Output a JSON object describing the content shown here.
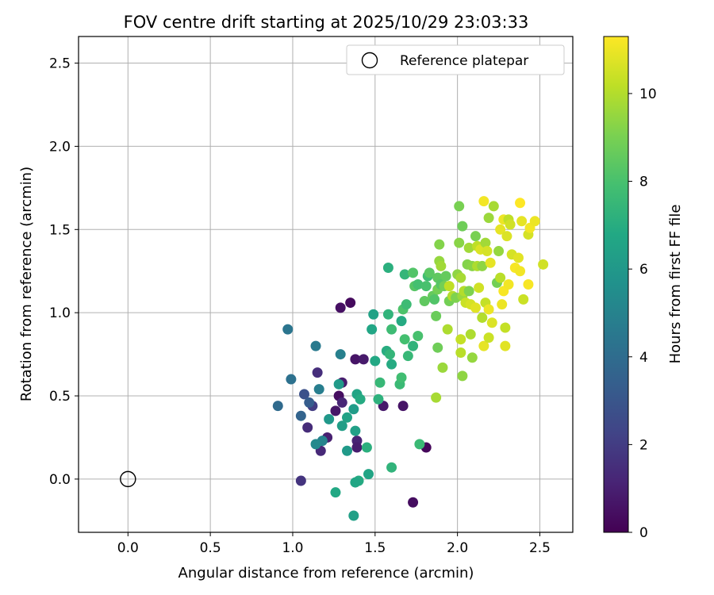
{
  "chart_data": {
    "type": "scatter",
    "title": "FOV centre drift starting at 2025/10/29 23:03:33",
    "xlabel": "Angular distance from reference (arcmin)",
    "ylabel": "Rotation from reference (arcmin)",
    "xlim": [
      -0.3,
      2.7
    ],
    "ylim": [
      -0.32,
      2.66
    ],
    "grid": true,
    "legend_position": "top-right",
    "xticks": [
      0.0,
      0.5,
      1.0,
      1.5,
      2.0,
      2.5
    ],
    "xtick_labels": [
      "0.0",
      "0.5",
      "1.0",
      "1.5",
      "2.0",
      "2.5"
    ],
    "yticks": [
      0.0,
      0.5,
      1.0,
      1.5,
      2.0,
      2.5
    ],
    "ytick_labels": [
      "0.0",
      "0.5",
      "1.0",
      "1.5",
      "2.0",
      "2.5"
    ],
    "reference": {
      "label": "Reference platepar",
      "x": 0.0,
      "y": 0.0,
      "marker": "open-circle"
    },
    "colorbar": {
      "label": "Hours from first FF file",
      "colormap": "viridis",
      "range": [
        0,
        11.3
      ],
      "ticks": [
        0,
        2,
        4,
        6,
        8,
        10
      ],
      "tick_labels": [
        "0",
        "2",
        "4",
        "6",
        "8",
        "10"
      ]
    },
    "series": [
      {
        "name": "FOV centre",
        "points": [
          {
            "x": 1.29,
            "y": 1.03,
            "c": 0.5
          },
          {
            "x": 1.35,
            "y": 1.06,
            "c": 0.3
          },
          {
            "x": 1.38,
            "y": 0.72,
            "c": 0.6
          },
          {
            "x": 1.43,
            "y": 0.72,
            "c": 0.8
          },
          {
            "x": 1.3,
            "y": 0.58,
            "c": 0.9
          },
          {
            "x": 1.28,
            "y": 0.5,
            "c": 0.4
          },
          {
            "x": 1.26,
            "y": 0.41,
            "c": 0.7
          },
          {
            "x": 1.3,
            "y": 0.46,
            "c": 1.2
          },
          {
            "x": 1.21,
            "y": 0.25,
            "c": 1.0
          },
          {
            "x": 1.17,
            "y": 0.17,
            "c": 1.3
          },
          {
            "x": 1.09,
            "y": 0.31,
            "c": 1.4
          },
          {
            "x": 1.15,
            "y": 0.64,
            "c": 1.5
          },
          {
            "x": 1.39,
            "y": 0.23,
            "c": 1.1
          },
          {
            "x": 1.39,
            "y": 0.19,
            "c": 0.9
          },
          {
            "x": 1.55,
            "y": 0.44,
            "c": 0.8
          },
          {
            "x": 1.67,
            "y": 0.44,
            "c": 0.6
          },
          {
            "x": 1.81,
            "y": 0.19,
            "c": 0.2
          },
          {
            "x": 1.73,
            "y": -0.14,
            "c": 0.4
          },
          {
            "x": 1.05,
            "y": -0.01,
            "c": 1.7
          },
          {
            "x": 1.12,
            "y": 0.44,
            "c": 2.0
          },
          {
            "x": 1.07,
            "y": 0.51,
            "c": 2.8
          },
          {
            "x": 1.1,
            "y": 0.46,
            "c": 3.3
          },
          {
            "x": 1.05,
            "y": 0.38,
            "c": 3.6
          },
          {
            "x": 0.91,
            "y": 0.44,
            "c": 3.9
          },
          {
            "x": 0.99,
            "y": 0.6,
            "c": 4.2
          },
          {
            "x": 0.97,
            "y": 0.9,
            "c": 4.4
          },
          {
            "x": 1.14,
            "y": 0.8,
            "c": 4.6
          },
          {
            "x": 1.16,
            "y": 0.54,
            "c": 4.8
          },
          {
            "x": 1.18,
            "y": 0.23,
            "c": 5.0
          },
          {
            "x": 1.14,
            "y": 0.21,
            "c": 5.3
          },
          {
            "x": 1.29,
            "y": 0.75,
            "c": 4.9
          },
          {
            "x": 1.22,
            "y": 0.36,
            "c": 6.0
          },
          {
            "x": 1.3,
            "y": 0.32,
            "c": 6.3
          },
          {
            "x": 1.33,
            "y": 0.37,
            "c": 6.5
          },
          {
            "x": 1.28,
            "y": 0.57,
            "c": 6.1
          },
          {
            "x": 1.37,
            "y": 0.42,
            "c": 6.2
          },
          {
            "x": 1.38,
            "y": 0.29,
            "c": 6.4
          },
          {
            "x": 1.39,
            "y": 0.51,
            "c": 6.6
          },
          {
            "x": 1.33,
            "y": 0.17,
            "c": 6.1
          },
          {
            "x": 1.4,
            "y": -0.01,
            "c": 6.9
          },
          {
            "x": 1.38,
            "y": -0.02,
            "c": 6.7
          },
          {
            "x": 1.37,
            "y": -0.22,
            "c": 6.4
          },
          {
            "x": 1.26,
            "y": -0.08,
            "c": 6.8
          },
          {
            "x": 1.45,
            "y": 0.19,
            "c": 7.1
          },
          {
            "x": 1.46,
            "y": 0.03,
            "c": 6.6
          },
          {
            "x": 1.6,
            "y": 0.07,
            "c": 7.3
          },
          {
            "x": 1.77,
            "y": 0.21,
            "c": 7.6
          },
          {
            "x": 1.41,
            "y": 0.48,
            "c": 6.9
          },
          {
            "x": 1.48,
            "y": 0.9,
            "c": 6.7
          },
          {
            "x": 1.49,
            "y": 0.99,
            "c": 6.5
          },
          {
            "x": 1.5,
            "y": 0.71,
            "c": 6.8
          },
          {
            "x": 1.52,
            "y": 0.48,
            "c": 7.2
          },
          {
            "x": 1.53,
            "y": 0.58,
            "c": 7.5
          },
          {
            "x": 1.57,
            "y": 0.77,
            "c": 7.0
          },
          {
            "x": 1.59,
            "y": 0.75,
            "c": 7.4
          },
          {
            "x": 1.6,
            "y": 0.69,
            "c": 6.9
          },
          {
            "x": 1.58,
            "y": 0.99,
            "c": 7.3
          },
          {
            "x": 1.6,
            "y": 0.9,
            "c": 7.7
          },
          {
            "x": 1.58,
            "y": 1.27,
            "c": 7.1
          },
          {
            "x": 1.65,
            "y": 0.57,
            "c": 7.6
          },
          {
            "x": 1.66,
            "y": 0.61,
            "c": 7.8
          },
          {
            "x": 1.66,
            "y": 0.95,
            "c": 6.9
          },
          {
            "x": 1.68,
            "y": 0.84,
            "c": 7.9
          },
          {
            "x": 1.7,
            "y": 0.74,
            "c": 7.5
          },
          {
            "x": 1.73,
            "y": 0.8,
            "c": 7.3
          },
          {
            "x": 1.76,
            "y": 0.86,
            "c": 8.0
          },
          {
            "x": 1.67,
            "y": 1.02,
            "c": 8.1
          },
          {
            "x": 1.69,
            "y": 1.05,
            "c": 7.7
          },
          {
            "x": 1.68,
            "y": 1.23,
            "c": 7.4
          },
          {
            "x": 1.74,
            "y": 1.16,
            "c": 8.3
          },
          {
            "x": 1.76,
            "y": 1.17,
            "c": 7.9
          },
          {
            "x": 1.73,
            "y": 1.24,
            "c": 8.2
          },
          {
            "x": 1.8,
            "y": 1.07,
            "c": 8.5
          },
          {
            "x": 1.81,
            "y": 1.16,
            "c": 8.0
          },
          {
            "x": 1.82,
            "y": 1.22,
            "c": 7.8
          },
          {
            "x": 1.83,
            "y": 1.24,
            "c": 8.4
          },
          {
            "x": 1.85,
            "y": 1.1,
            "c": 8.6
          },
          {
            "x": 1.86,
            "y": 1.08,
            "c": 8.2
          },
          {
            "x": 1.87,
            "y": 0.98,
            "c": 8.7
          },
          {
            "x": 1.88,
            "y": 1.14,
            "c": 8.9
          },
          {
            "x": 1.88,
            "y": 0.79,
            "c": 8.8
          },
          {
            "x": 1.88,
            "y": 1.21,
            "c": 8.5
          },
          {
            "x": 1.89,
            "y": 1.41,
            "c": 9.2
          },
          {
            "x": 1.9,
            "y": 1.17,
            "c": 8.3
          },
          {
            "x": 1.91,
            "y": 0.67,
            "c": 9.6
          },
          {
            "x": 1.92,
            "y": 1.16,
            "c": 8.9
          },
          {
            "x": 1.93,
            "y": 1.22,
            "c": 8.6
          },
          {
            "x": 1.87,
            "y": 0.49,
            "c": 9.8
          },
          {
            "x": 1.89,
            "y": 1.31,
            "c": 9.5
          },
          {
            "x": 1.9,
            "y": 1.28,
            "c": 9.7
          },
          {
            "x": 1.94,
            "y": 0.9,
            "c": 9.9
          },
          {
            "x": 1.95,
            "y": 1.16,
            "c": 10.2
          },
          {
            "x": 1.95,
            "y": 1.07,
            "c": 8.9
          },
          {
            "x": 1.97,
            "y": 1.1,
            "c": 10.0
          },
          {
            "x": 1.99,
            "y": 1.09,
            "c": 9.1
          },
          {
            "x": 2.0,
            "y": 1.23,
            "c": 9.4
          },
          {
            "x": 2.01,
            "y": 1.64,
            "c": 9.0
          },
          {
            "x": 2.01,
            "y": 1.42,
            "c": 9.3
          },
          {
            "x": 2.02,
            "y": 1.21,
            "c": 9.8
          },
          {
            "x": 2.02,
            "y": 0.76,
            "c": 10.1
          },
          {
            "x": 2.02,
            "y": 0.84,
            "c": 10.3
          },
          {
            "x": 2.03,
            "y": 1.1,
            "c": 9.6
          },
          {
            "x": 2.03,
            "y": 1.52,
            "c": 8.8
          },
          {
            "x": 2.03,
            "y": 0.62,
            "c": 9.4
          },
          {
            "x": 2.04,
            "y": 1.13,
            "c": 10.0
          },
          {
            "x": 2.05,
            "y": 1.06,
            "c": 10.4
          },
          {
            "x": 2.06,
            "y": 1.29,
            "c": 9.2
          },
          {
            "x": 2.07,
            "y": 1.13,
            "c": 9.1
          },
          {
            "x": 2.07,
            "y": 1.39,
            "c": 9.7
          },
          {
            "x": 2.08,
            "y": 1.05,
            "c": 10.6
          },
          {
            "x": 2.08,
            "y": 0.87,
            "c": 9.9
          },
          {
            "x": 2.09,
            "y": 0.73,
            "c": 9.5
          },
          {
            "x": 2.09,
            "y": 1.28,
            "c": 9.3
          },
          {
            "x": 2.11,
            "y": 1.46,
            "c": 9.0
          },
          {
            "x": 2.11,
            "y": 1.03,
            "c": 10.8
          },
          {
            "x": 2.12,
            "y": 1.28,
            "c": 9.9
          },
          {
            "x": 2.12,
            "y": 1.4,
            "c": 10.2
          },
          {
            "x": 2.13,
            "y": 1.15,
            "c": 10.5
          },
          {
            "x": 2.14,
            "y": 1.38,
            "c": 10.7
          },
          {
            "x": 2.15,
            "y": 0.97,
            "c": 10.0
          },
          {
            "x": 2.15,
            "y": 1.28,
            "c": 9.4
          },
          {
            "x": 2.16,
            "y": 1.67,
            "c": 11.1
          },
          {
            "x": 2.16,
            "y": 0.8,
            "c": 10.9
          },
          {
            "x": 2.17,
            "y": 1.06,
            "c": 10.3
          },
          {
            "x": 2.17,
            "y": 1.42,
            "c": 9.7
          },
          {
            "x": 2.18,
            "y": 1.37,
            "c": 10.6
          },
          {
            "x": 2.19,
            "y": 1.57,
            "c": 9.6
          },
          {
            "x": 2.19,
            "y": 0.85,
            "c": 10.4
          },
          {
            "x": 2.19,
            "y": 1.02,
            "c": 11.0
          },
          {
            "x": 2.2,
            "y": 1.3,
            "c": 10.9
          },
          {
            "x": 2.21,
            "y": 0.94,
            "c": 10.7
          },
          {
            "x": 2.22,
            "y": 1.64,
            "c": 9.8
          },
          {
            "x": 2.24,
            "y": 1.18,
            "c": 8.9
          },
          {
            "x": 2.25,
            "y": 1.37,
            "c": 9.5
          },
          {
            "x": 2.26,
            "y": 1.5,
            "c": 10.9
          },
          {
            "x": 2.26,
            "y": 1.21,
            "c": 10.1
          },
          {
            "x": 2.27,
            "y": 1.05,
            "c": 11.0
          },
          {
            "x": 2.28,
            "y": 1.13,
            "c": 11.2
          },
          {
            "x": 2.28,
            "y": 1.56,
            "c": 11.0
          },
          {
            "x": 2.29,
            "y": 0.91,
            "c": 10.3
          },
          {
            "x": 2.29,
            "y": 0.8,
            "c": 10.8
          },
          {
            "x": 2.3,
            "y": 1.46,
            "c": 10.7
          },
          {
            "x": 2.31,
            "y": 1.56,
            "c": 10.2
          },
          {
            "x": 2.31,
            "y": 1.17,
            "c": 11.1
          },
          {
            "x": 2.32,
            "y": 1.53,
            "c": 10.5
          },
          {
            "x": 2.33,
            "y": 1.35,
            "c": 10.6
          },
          {
            "x": 2.35,
            "y": 1.27,
            "c": 11.2
          },
          {
            "x": 2.37,
            "y": 1.33,
            "c": 10.8
          },
          {
            "x": 2.38,
            "y": 1.66,
            "c": 11.3
          },
          {
            "x": 2.38,
            "y": 1.25,
            "c": 11.1
          },
          {
            "x": 2.39,
            "y": 1.55,
            "c": 10.9
          },
          {
            "x": 2.4,
            "y": 1.08,
            "c": 10.4
          },
          {
            "x": 2.43,
            "y": 1.47,
            "c": 10.6
          },
          {
            "x": 2.43,
            "y": 1.17,
            "c": 11.2
          },
          {
            "x": 2.44,
            "y": 1.51,
            "c": 11.1
          },
          {
            "x": 2.47,
            "y": 1.55,
            "c": 11.0
          },
          {
            "x": 2.52,
            "y": 1.29,
            "c": 10.5
          }
        ]
      }
    ]
  }
}
